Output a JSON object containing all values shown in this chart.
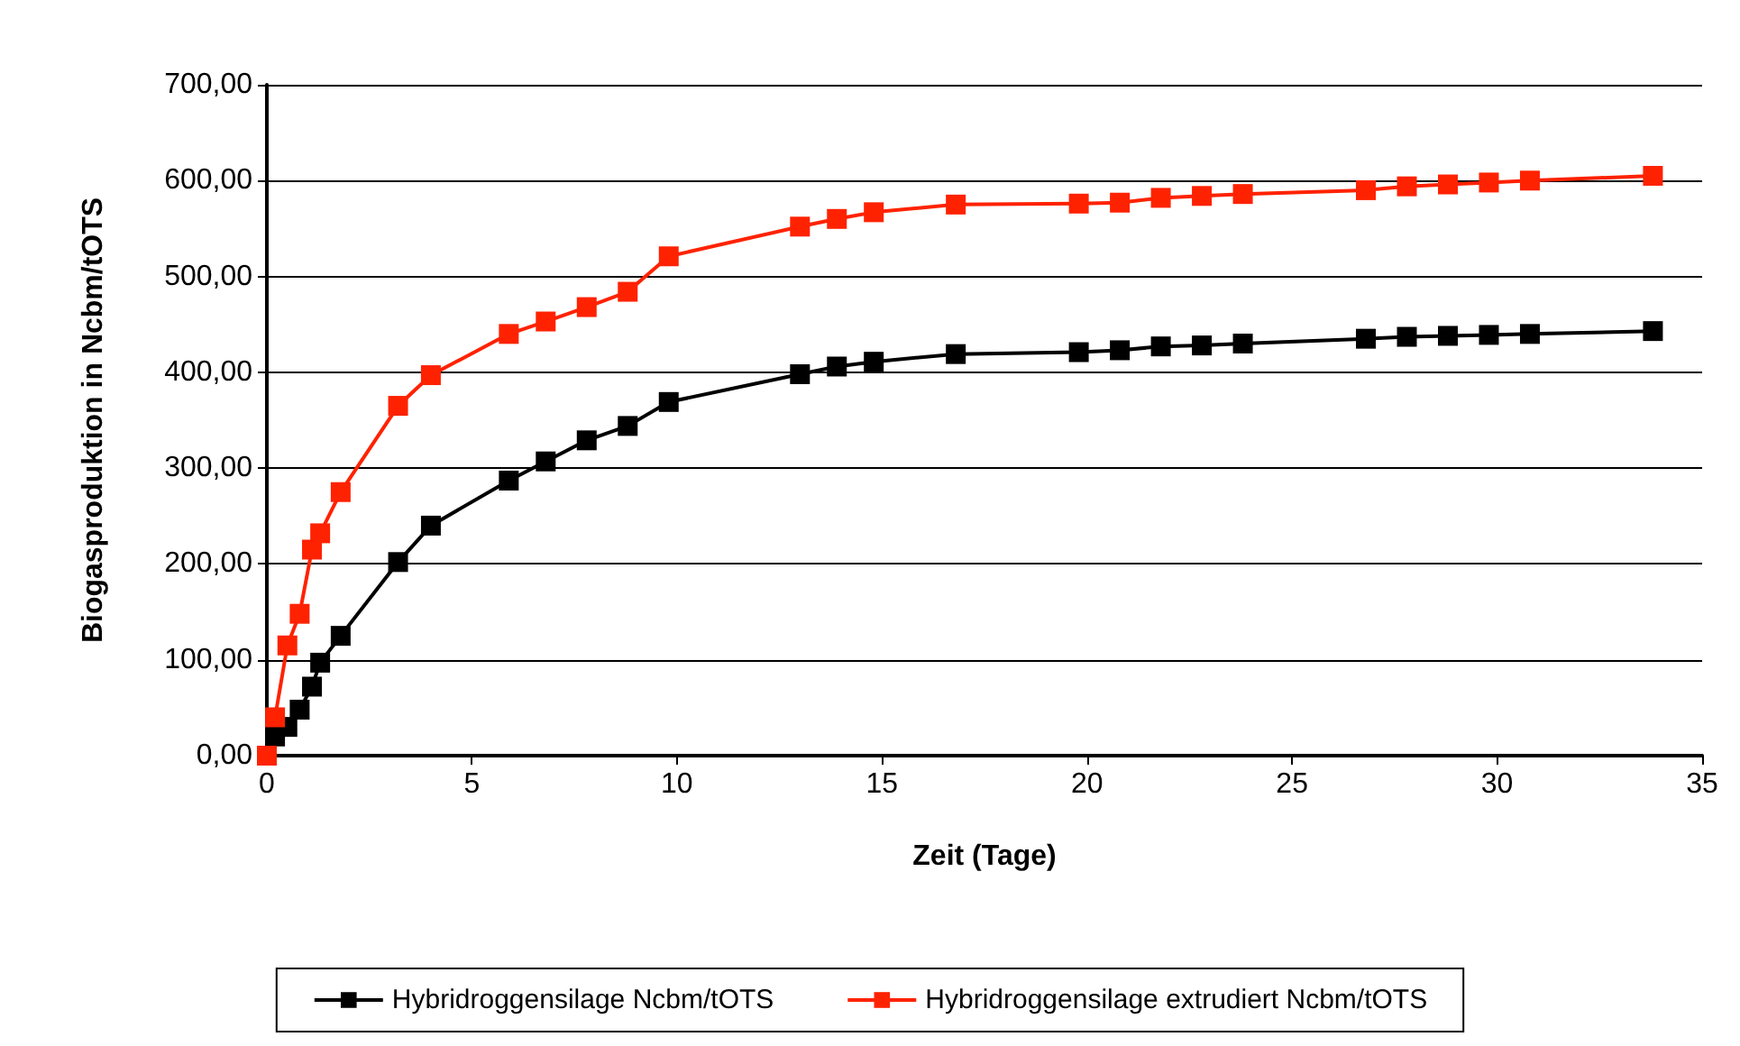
{
  "chart_data": {
    "type": "line",
    "xlabel": "Zeit (Tage)",
    "ylabel": "Biogasproduktion in Ncbm/tOTS",
    "x": [
      0,
      0.2,
      0.5,
      0.8,
      1.1,
      1.3,
      1.8,
      3.2,
      4,
      5.9,
      6.8,
      7.8,
      8.8,
      9.8,
      13,
      13.9,
      14.8,
      16.8,
      19.8,
      20.8,
      21.8,
      22.8,
      23.8,
      26.8,
      27.8,
      28.8,
      29.8,
      30.8,
      33.8
    ],
    "series": [
      {
        "name": "Hybridroggensilage Ncbm/tOTS",
        "color": "#000000",
        "values": [
          0,
          20,
          30,
          48,
          72,
          97,
          125,
          202,
          240,
          287,
          307,
          329,
          344,
          369,
          398,
          406,
          411,
          419,
          421,
          423,
          427,
          428,
          430,
          435,
          437,
          438,
          439,
          440,
          443
        ]
      },
      {
        "name": "Hybridroggensilage extrudiert Ncbm/tOTS",
        "color": "#ff2200",
        "values": [
          0,
          40,
          115,
          148,
          215,
          232,
          275,
          365,
          397,
          440,
          453,
          468,
          484,
          521,
          552,
          560,
          567,
          575,
          576,
          577,
          582,
          584,
          586,
          590,
          594,
          596,
          598,
          600,
          605
        ]
      }
    ],
    "xlim": [
      0,
      35
    ],
    "xticks": [
      0,
      5,
      10,
      15,
      20,
      25,
      30,
      35
    ],
    "ylim": [
      0,
      700
    ],
    "yticks": [
      {
        "value": 0,
        "label": "0,00"
      },
      {
        "value": 100,
        "label": "100,00"
      },
      {
        "value": 200,
        "label": "200,00"
      },
      {
        "value": 300,
        "label": "300,00"
      },
      {
        "value": 400,
        "label": "400,00"
      },
      {
        "value": 500,
        "label": "500,00"
      },
      {
        "value": 600,
        "label": "600,00"
      },
      {
        "value": 700,
        "label": "700,00"
      }
    ],
    "grid": "y",
    "legend": "bottom",
    "marker": "square",
    "line_style": "solid"
  }
}
